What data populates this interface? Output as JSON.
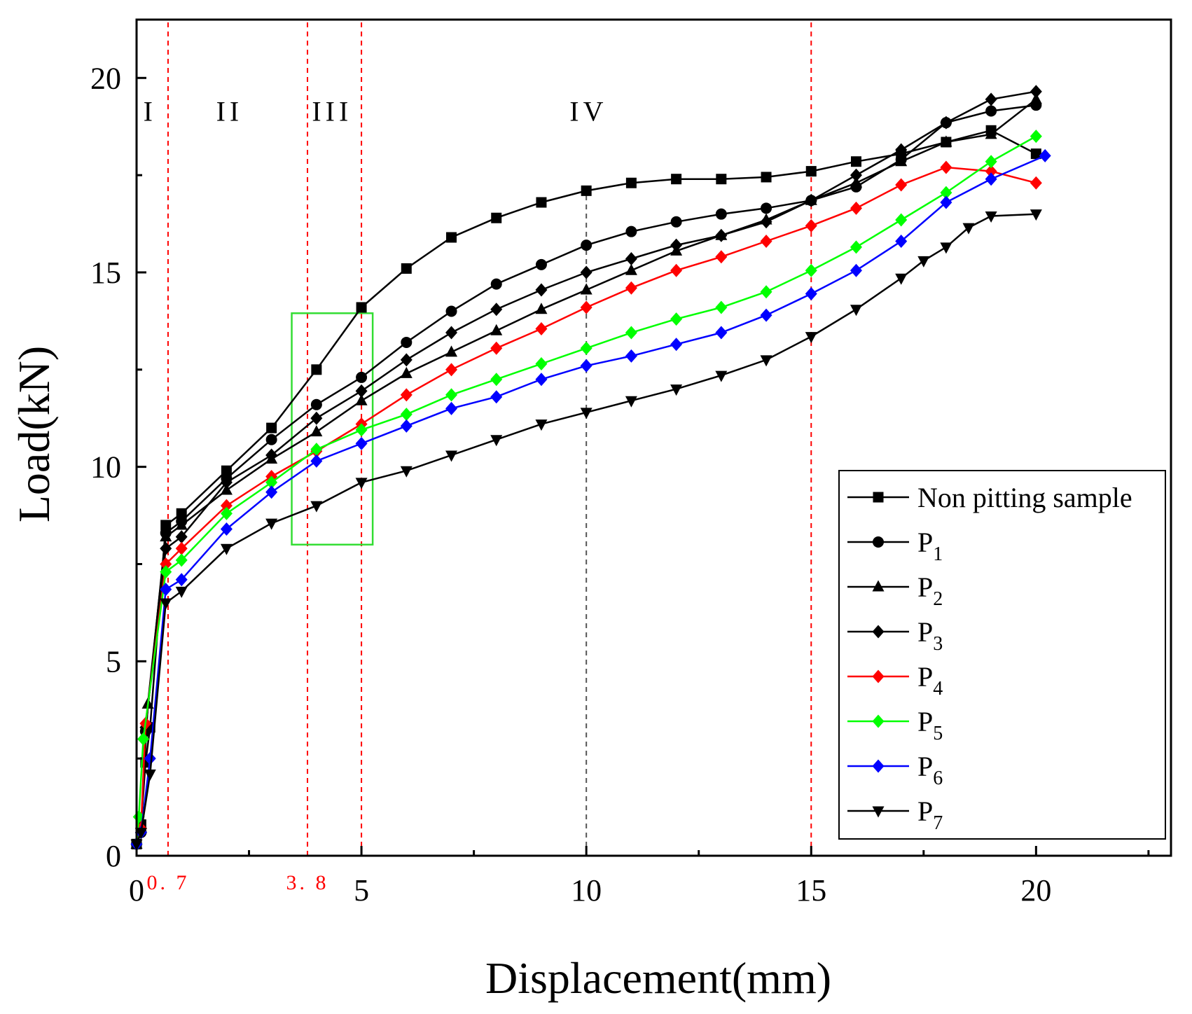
{
  "chart_data": {
    "type": "line",
    "xlabel": "Displacement(mm)",
    "ylabel": "Load(kN)",
    "xlim": [
      0,
      23
    ],
    "ylim": [
      0,
      21.5
    ],
    "x_ticks": [
      0,
      5,
      10,
      15,
      20
    ],
    "y_ticks": [
      0,
      5,
      10,
      15,
      20
    ],
    "grid": false,
    "legend_position": "bottom-right",
    "reference_lines": [
      {
        "x": 0.7,
        "color": "#ff0000",
        "style": "dashed",
        "label": "0. 7"
      },
      {
        "x": 3.8,
        "color": "#ff0000",
        "style": "dashed",
        "label": "3. 8"
      },
      {
        "x": 5,
        "color": "#ff0000",
        "style": "dashed",
        "label": ""
      },
      {
        "x": 10,
        "color": "#555555",
        "style": "dashed",
        "label": "",
        "y_max": 17.1
      },
      {
        "x": 15,
        "color": "#ff0000",
        "style": "dashed",
        "label": ""
      }
    ],
    "regions": [
      {
        "label": "I",
        "x": 0.3,
        "y": 18.9
      },
      {
        "label": "II",
        "x": 2.07,
        "y": 18.9
      },
      {
        "label": "III",
        "x": 4.35,
        "y": 18.9
      },
      {
        "label": "IV",
        "x": 10.05,
        "y": 18.9
      }
    ],
    "highlight_box": {
      "x_range": [
        3.45,
        5.25
      ],
      "y_range": [
        8.0,
        13.95
      ],
      "color": "#33dd33"
    },
    "series": [
      {
        "name": "Non pitting sample",
        "legend_base": "Non pitting sample",
        "legend_sub": "",
        "color": "#000000",
        "marker": "square",
        "x": [
          0,
          0.1,
          0.2,
          0.3,
          0.65,
          1.0,
          2.0,
          3.0,
          4.0,
          5.0,
          6.0,
          7.0,
          8.0,
          9.0,
          10.0,
          11.0,
          12.0,
          13.0,
          14.0,
          15.0,
          16.0,
          17.0,
          18.0,
          19.0,
          20.0
        ],
        "y": [
          0.3,
          0.8,
          2.4,
          3.3,
          8.5,
          8.8,
          9.9,
          11.0,
          12.5,
          14.1,
          15.1,
          15.9,
          16.4,
          16.8,
          17.1,
          17.3,
          17.4,
          17.4,
          17.45,
          17.6,
          17.85,
          18.05,
          18.35,
          18.65,
          18.05
        ]
      },
      {
        "name": "P1",
        "legend_base": "P",
        "legend_sub": "1",
        "color": "#000000",
        "marker": "circle",
        "x": [
          0,
          0.1,
          0.2,
          0.65,
          1.0,
          2.0,
          3.0,
          4.0,
          5.0,
          6.0,
          7.0,
          8.0,
          9.0,
          10.0,
          11.0,
          12.0,
          13.0,
          14.0,
          15.0,
          16.0,
          17.0,
          18.0,
          19.0,
          20.0
        ],
        "y": [
          0.3,
          0.6,
          3.2,
          8.3,
          8.6,
          9.7,
          10.7,
          11.6,
          12.3,
          13.2,
          14.0,
          14.7,
          15.2,
          15.7,
          16.05,
          16.3,
          16.5,
          16.65,
          16.85,
          17.2,
          17.9,
          18.85,
          19.15,
          19.3
        ]
      },
      {
        "name": "P2",
        "legend_base": "P",
        "legend_sub": "2",
        "color": "#000000",
        "marker": "triangle-up",
        "x": [
          0,
          0.1,
          0.25,
          0.65,
          1.0,
          2.0,
          3.0,
          4.0,
          5.0,
          6.0,
          7.0,
          8.0,
          9.0,
          10.0,
          11.0,
          12.0,
          13.0,
          14.0,
          15.0,
          16.0,
          17.0,
          18.0,
          19.0,
          20.0
        ],
        "y": [
          0.3,
          0.7,
          3.9,
          8.2,
          8.5,
          9.4,
          10.2,
          10.9,
          11.7,
          12.4,
          12.95,
          13.5,
          14.05,
          14.55,
          15.05,
          15.55,
          15.95,
          16.35,
          16.85,
          17.3,
          17.85,
          18.35,
          18.55,
          19.45
        ]
      },
      {
        "name": "P3",
        "legend_base": "P",
        "legend_sub": "3",
        "color": "#000000",
        "marker": "diamond",
        "x": [
          0,
          0.1,
          0.2,
          0.65,
          1.0,
          2.0,
          3.0,
          4.0,
          5.0,
          6.0,
          7.0,
          8.0,
          9.0,
          10.0,
          11.0,
          12.0,
          13.0,
          14.0,
          15.0,
          16.0,
          17.0,
          18.0,
          19.0,
          20.0
        ],
        "y": [
          0.3,
          0.6,
          3.3,
          7.9,
          8.2,
          9.6,
          10.3,
          11.25,
          11.95,
          12.75,
          13.45,
          14.05,
          14.55,
          15.0,
          15.35,
          15.7,
          15.95,
          16.3,
          16.85,
          17.5,
          18.15,
          18.85,
          19.45,
          19.65
        ]
      },
      {
        "name": "P4",
        "legend_base": "P",
        "legend_sub": "4",
        "color": "#ff0000",
        "marker": "diamond",
        "x": [
          0,
          0.1,
          0.2,
          0.65,
          1.0,
          2.0,
          3.0,
          4.0,
          5.0,
          6.0,
          7.0,
          8.0,
          9.0,
          10.0,
          11.0,
          12.0,
          13.0,
          14.0,
          15.0,
          16.0,
          17.0,
          18.0,
          19.0,
          20.0
        ],
        "y": [
          0.3,
          0.7,
          3.4,
          7.5,
          7.9,
          9.0,
          9.75,
          10.4,
          11.1,
          11.85,
          12.5,
          13.05,
          13.55,
          14.1,
          14.6,
          15.05,
          15.4,
          15.8,
          16.2,
          16.65,
          17.25,
          17.7,
          17.6,
          17.3
        ]
      },
      {
        "name": "P5",
        "legend_base": "P",
        "legend_sub": "5",
        "color": "#00ff00",
        "marker": "diamond",
        "x": [
          0,
          0.05,
          0.15,
          0.65,
          1.0,
          2.0,
          3.0,
          4.0,
          5.0,
          6.0,
          7.0,
          8.0,
          9.0,
          10.0,
          11.0,
          12.0,
          13.0,
          14.0,
          15.0,
          16.0,
          17.0,
          18.0,
          19.0,
          20.0
        ],
        "y": [
          0.3,
          1.0,
          3.0,
          7.3,
          7.6,
          8.8,
          9.6,
          10.45,
          10.95,
          11.35,
          11.85,
          12.25,
          12.65,
          13.05,
          13.45,
          13.8,
          14.1,
          14.5,
          15.05,
          15.65,
          16.35,
          17.05,
          17.85,
          18.5
        ]
      },
      {
        "name": "P6",
        "legend_base": "P",
        "legend_sub": "6",
        "color": "#0000ff",
        "marker": "diamond",
        "x": [
          0,
          0.1,
          0.3,
          0.65,
          1.0,
          2.0,
          3.0,
          4.0,
          5.0,
          6.0,
          7.0,
          8.0,
          9.0,
          10.0,
          11.0,
          12.0,
          13.0,
          14.0,
          15.0,
          16.0,
          17.0,
          18.0,
          19.0,
          20.2
        ],
        "y": [
          0.3,
          0.6,
          2.5,
          6.85,
          7.1,
          8.4,
          9.35,
          10.15,
          10.6,
          11.05,
          11.5,
          11.8,
          12.25,
          12.6,
          12.85,
          13.15,
          13.45,
          13.9,
          14.45,
          15.05,
          15.8,
          16.8,
          17.4,
          18.0
        ]
      },
      {
        "name": "P7",
        "legend_base": "P",
        "legend_sub": "7",
        "color": "#000000",
        "marker": "triangle-down",
        "x": [
          0,
          0.1,
          0.3,
          0.65,
          1.0,
          2.0,
          3.0,
          4.0,
          5.0,
          6.0,
          7.0,
          8.0,
          9.0,
          10.0,
          11.0,
          12.0,
          13.0,
          14.0,
          15.0,
          16.0,
          17.0,
          17.5,
          18.0,
          18.5,
          19.0,
          20.0
        ],
        "y": [
          0.3,
          0.6,
          2.1,
          6.5,
          6.8,
          7.9,
          8.55,
          9.0,
          9.6,
          9.9,
          10.3,
          10.7,
          11.1,
          11.4,
          11.7,
          12.0,
          12.35,
          12.75,
          13.35,
          14.05,
          14.85,
          15.3,
          15.65,
          16.15,
          16.45,
          16.5
        ]
      }
    ]
  }
}
